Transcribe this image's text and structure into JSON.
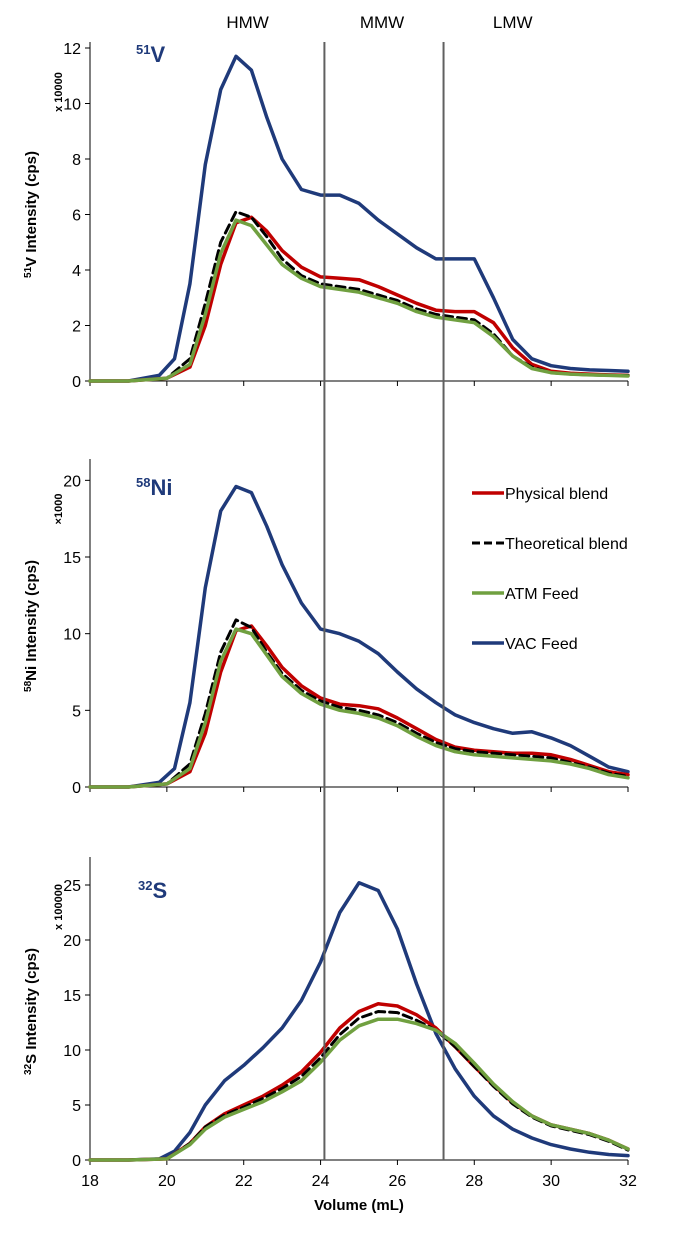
{
  "chart_data": {
    "type": "line",
    "x_range": [
      18,
      32
    ],
    "x_ticks": [
      18,
      20,
      22,
      24,
      26,
      28,
      30,
      32
    ],
    "xlabel": "Volume (mL)",
    "regions": {
      "dividers_x": [
        24.1,
        27.2
      ],
      "labels": [
        {
          "text": "HMW",
          "x": 22.1
        },
        {
          "text": "MMW",
          "x": 25.6
        },
        {
          "text": "LMW",
          "x": 29.0
        }
      ]
    },
    "colors": {
      "Physical blend": "#c00000",
      "Theoretical blend": "#000000",
      "ATM Feed": "#70a040",
      "VAC Feed": "#1f3a7a"
    },
    "legend": [
      {
        "name": "Physical blend",
        "dashed": false
      },
      {
        "name": "Theoretical blend",
        "dashed": true
      },
      {
        "name": "ATM Feed",
        "dashed": false
      },
      {
        "name": "VAC Feed",
        "dashed": false
      }
    ],
    "panels": [
      {
        "label_pre": "51",
        "label_main": "V",
        "ylabel_pre": "51",
        "ylabel_main": "V Intensity (cps)",
        "multiplier": "x 10000",
        "ylim": [
          0,
          12
        ],
        "y_ticks": [
          0,
          2,
          4,
          6,
          8,
          10,
          12
        ],
        "series": [
          {
            "name": "VAC Feed",
            "x": [
              18,
              19,
              19.8,
              20.2,
              20.6,
              21,
              21.4,
              21.8,
              22.2,
              22.6,
              23,
              23.5,
              24,
              24.5,
              25,
              25.5,
              26,
              26.5,
              27,
              27.5,
              28,
              28.5,
              29,
              29.5,
              30,
              30.5,
              31,
              31.5,
              32
            ],
            "y": [
              0,
              0,
              0.2,
              0.8,
              3.5,
              7.8,
              10.5,
              11.7,
              11.2,
              9.5,
              8.0,
              6.9,
              6.7,
              6.7,
              6.4,
              5.8,
              5.3,
              4.8,
              4.4,
              4.4,
              4.4,
              3.0,
              1.5,
              0.8,
              0.55,
              0.45,
              0.4,
              0.38,
              0.35
            ]
          },
          {
            "name": "Physical blend",
            "x": [
              18,
              19,
              20,
              20.6,
              21,
              21.4,
              21.8,
              22.2,
              22.6,
              23,
              23.5,
              24,
              24.5,
              25,
              25.5,
              26,
              26.5,
              27,
              27.5,
              28,
              28.5,
              29,
              29.5,
              30,
              30.5,
              31,
              31.5,
              32
            ],
            "y": [
              0,
              0,
              0.1,
              0.5,
              2.0,
              4.2,
              5.7,
              5.9,
              5.4,
              4.7,
              4.1,
              3.75,
              3.7,
              3.65,
              3.4,
              3.1,
              2.8,
              2.55,
              2.5,
              2.5,
              2.1,
              1.2,
              0.6,
              0.35,
              0.28,
              0.25,
              0.22,
              0.2
            ]
          },
          {
            "name": "Theoretical blend",
            "x": [
              18,
              19,
              20,
              20.6,
              21,
              21.4,
              21.8,
              22.2,
              22.6,
              23,
              23.5,
              24,
              24.5,
              25,
              25.5,
              26,
              26.5,
              27,
              27.5,
              28,
              28.5,
              29,
              29.5,
              30,
              30.5,
              31,
              31.5,
              32
            ],
            "y": [
              0,
              0,
              0.1,
              0.8,
              2.8,
              5.0,
              6.1,
              5.9,
              5.2,
              4.4,
              3.8,
              3.5,
              3.4,
              3.3,
              3.1,
              2.9,
              2.6,
              2.4,
              2.3,
              2.2,
              1.7,
              0.9,
              0.5,
              0.3,
              0.25,
              0.22,
              0.2,
              0.2
            ]
          },
          {
            "name": "ATM Feed",
            "x": [
              18,
              19,
              20,
              20.6,
              21,
              21.4,
              21.8,
              22.2,
              22.6,
              23,
              23.5,
              24,
              24.5,
              25,
              25.5,
              26,
              26.5,
              27,
              27.5,
              28,
              28.5,
              29,
              29.5,
              30,
              30.5,
              31,
              31.5,
              32
            ],
            "y": [
              0,
              0,
              0.1,
              0.6,
              2.4,
              4.6,
              5.8,
              5.6,
              4.9,
              4.2,
              3.7,
              3.4,
              3.3,
              3.2,
              3.0,
              2.8,
              2.5,
              2.3,
              2.2,
              2.1,
              1.6,
              0.9,
              0.45,
              0.3,
              0.25,
              0.22,
              0.2,
              0.18
            ]
          }
        ]
      },
      {
        "label_pre": "58",
        "label_main": "Ni",
        "ylabel_pre": "58",
        "ylabel_main": "Ni Intensity (cps)",
        "multiplier": "×1000",
        "ylim": [
          0,
          21
        ],
        "y_ticks": [
          0,
          5,
          10,
          15,
          20
        ],
        "series": [
          {
            "name": "VAC Feed",
            "x": [
              18,
              19,
              19.8,
              20.2,
              20.6,
              21,
              21.4,
              21.8,
              22.2,
              22.6,
              23,
              23.5,
              24,
              24.5,
              25,
              25.5,
              26,
              26.5,
              27,
              27.5,
              28,
              28.5,
              29,
              29.5,
              30,
              30.5,
              31,
              31.5,
              32
            ],
            "y": [
              0,
              0,
              0.3,
              1.2,
              5.5,
              13.0,
              18.0,
              19.6,
              19.2,
              17.0,
              14.5,
              12.0,
              10.3,
              10.0,
              9.5,
              8.7,
              7.5,
              6.4,
              5.5,
              4.7,
              4.2,
              3.8,
              3.5,
              3.6,
              3.2,
              2.7,
              2.0,
              1.3,
              1.0
            ]
          },
          {
            "name": "Physical blend",
            "x": [
              18,
              19,
              20,
              20.6,
              21,
              21.4,
              21.8,
              22.2,
              22.6,
              23,
              23.5,
              24,
              24.5,
              25,
              25.5,
              26,
              26.5,
              27,
              27.5,
              28,
              28.5,
              29,
              29.5,
              30,
              30.5,
              31,
              31.5,
              32
            ],
            "y": [
              0,
              0,
              0.2,
              1.0,
              3.5,
              7.5,
              10.2,
              10.5,
              9.2,
              7.8,
              6.6,
              5.8,
              5.4,
              5.3,
              5.1,
              4.5,
              3.8,
              3.1,
              2.6,
              2.4,
              2.3,
              2.2,
              2.2,
              2.1,
              1.8,
              1.4,
              1.0,
              0.8
            ]
          },
          {
            "name": "Theoretical blend",
            "x": [
              18,
              19,
              20,
              20.6,
              21,
              21.4,
              21.8,
              22.2,
              22.6,
              23,
              23.5,
              24,
              24.5,
              25,
              25.5,
              26,
              26.5,
              27,
              27.5,
              28,
              28.5,
              29,
              29.5,
              30,
              30.5,
              31,
              31.5,
              32
            ],
            "y": [
              0,
              0,
              0.2,
              1.5,
              4.8,
              8.8,
              10.9,
              10.4,
              8.8,
              7.4,
              6.3,
              5.6,
              5.2,
              5.0,
              4.7,
              4.2,
              3.5,
              2.9,
              2.5,
              2.3,
              2.2,
              2.1,
              2.0,
              1.9,
              1.6,
              1.3,
              0.9,
              0.7
            ]
          },
          {
            "name": "ATM Feed",
            "x": [
              18,
              19,
              20,
              20.6,
              21,
              21.4,
              21.8,
              22.2,
              22.6,
              23,
              23.5,
              24,
              24.5,
              25,
              25.5,
              26,
              26.5,
              27,
              27.5,
              28,
              28.5,
              29,
              29.5,
              30,
              30.5,
              31,
              31.5,
              32
            ],
            "y": [
              0,
              0,
              0.2,
              1.2,
              4.2,
              8.2,
              10.3,
              10.0,
              8.6,
              7.2,
              6.1,
              5.4,
              5.0,
              4.8,
              4.5,
              4.0,
              3.3,
              2.7,
              2.3,
              2.1,
              2.0,
              1.9,
              1.8,
              1.7,
              1.5,
              1.2,
              0.8,
              0.6
            ]
          }
        ]
      },
      {
        "label_pre": "32",
        "label_main": "S",
        "ylabel_pre": "32",
        "ylabel_main": "S Intensity (cps)",
        "multiplier": "x 100000",
        "ylim": [
          0,
          27
        ],
        "y_ticks": [
          0,
          5,
          10,
          15,
          20,
          25
        ],
        "series": [
          {
            "name": "VAC Feed",
            "x": [
              18,
              19,
              19.8,
              20.2,
              20.6,
              21,
              21.5,
              22,
              22.5,
              23,
              23.5,
              24,
              24.5,
              25,
              25.5,
              26,
              26.5,
              27,
              27.5,
              28,
              28.5,
              29,
              29.5,
              30,
              30.5,
              31,
              31.5,
              32
            ],
            "y": [
              0,
              0,
              0.1,
              0.8,
              2.5,
              5.0,
              7.2,
              8.6,
              10.2,
              12.0,
              14.5,
              18.0,
              22.5,
              25.2,
              24.5,
              21.0,
              16.0,
              11.5,
              8.3,
              5.8,
              4.0,
              2.8,
              2.0,
              1.4,
              1.0,
              0.7,
              0.5,
              0.4
            ]
          },
          {
            "name": "Physical blend",
            "x": [
              18,
              19,
              20,
              20.6,
              21,
              21.5,
              22,
              22.5,
              23,
              23.5,
              24,
              24.5,
              25,
              25.5,
              26,
              26.5,
              27,
              27.5,
              28,
              28.5,
              29,
              29.5,
              30,
              30.5,
              31,
              31.5,
              32
            ],
            "y": [
              0,
              0,
              0.1,
              1.5,
              3.0,
              4.2,
              5.0,
              5.8,
              6.8,
              8.0,
              9.8,
              12.0,
              13.5,
              14.2,
              14.0,
              13.2,
              12.0,
              10.3,
              8.5,
              6.8,
              5.2,
              4.0,
              3.2,
              2.8,
              2.4,
              1.8,
              1.0
            ]
          },
          {
            "name": "Theoretical blend",
            "x": [
              18,
              19,
              20,
              20.6,
              21,
              21.5,
              22,
              22.5,
              23,
              23.5,
              24,
              24.5,
              25,
              25.5,
              26,
              26.5,
              27,
              27.5,
              28,
              28.5,
              29,
              29.5,
              30,
              30.5,
              31,
              31.5,
              32
            ],
            "y": [
              0,
              0,
              0.1,
              1.5,
              3.0,
              4.1,
              4.8,
              5.6,
              6.5,
              7.6,
              9.3,
              11.4,
              12.9,
              13.5,
              13.4,
              12.7,
              11.8,
              10.3,
              8.5,
              6.7,
              5.1,
              3.9,
              3.1,
              2.7,
              2.3,
              1.7,
              0.9
            ]
          },
          {
            "name": "ATM Feed",
            "x": [
              18,
              19,
              20,
              20.6,
              21,
              21.5,
              22,
              22.5,
              23,
              23.5,
              24,
              24.5,
              25,
              25.5,
              26,
              26.5,
              27,
              27.5,
              28,
              28.5,
              29,
              29.5,
              30,
              30.5,
              31,
              31.5,
              32
            ],
            "y": [
              0,
              0,
              0.1,
              1.4,
              2.8,
              3.9,
              4.6,
              5.3,
              6.2,
              7.2,
              8.9,
              10.9,
              12.2,
              12.8,
              12.8,
              12.4,
              11.8,
              10.6,
              8.8,
              6.9,
              5.3,
              4.0,
              3.2,
              2.8,
              2.4,
              1.8,
              1.0
            ]
          }
        ]
      }
    ]
  }
}
